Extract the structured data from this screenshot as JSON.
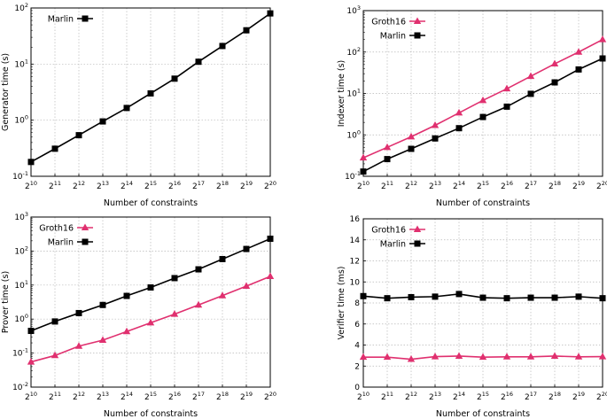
{
  "colors": {
    "marlin": "#000000",
    "groth16": "#e0306f",
    "grid": "#b8b8b8"
  },
  "chart_data": [
    {
      "type": "line",
      "id": "generator",
      "title": "",
      "xlabel": "Number of constraints",
      "ylabel": "Generator time (s)",
      "yscale": "log",
      "ylim": [
        0.1,
        100
      ],
      "ylog_ticks": [
        -1,
        0,
        1,
        2
      ],
      "x_exponents": [
        10,
        11,
        12,
        13,
        14,
        15,
        16,
        17,
        18,
        19,
        20
      ],
      "legend": "top-left",
      "series": [
        {
          "name": "Marlin",
          "marker": "square",
          "color": "#000000",
          "values": [
            0.18,
            0.31,
            0.54,
            0.95,
            1.65,
            3.0,
            5.5,
            11.0,
            21.0,
            40.0,
            80.0
          ]
        }
      ]
    },
    {
      "type": "line",
      "id": "indexer",
      "title": "",
      "xlabel": "Number of constraints",
      "ylabel": "Indexer time (s)",
      "yscale": "log",
      "ylim": [
        0.1,
        1000
      ],
      "ylog_ticks": [
        -1,
        0,
        1,
        2,
        3
      ],
      "x_exponents": [
        10,
        11,
        12,
        13,
        14,
        15,
        16,
        17,
        18,
        19,
        20
      ],
      "legend": "top-left",
      "series": [
        {
          "name": "Groth16",
          "marker": "triangle",
          "color": "#e0306f",
          "values": [
            0.28,
            0.5,
            0.9,
            1.7,
            3.4,
            6.8,
            13.0,
            26.0,
            52.0,
            100.0,
            200.0
          ]
        },
        {
          "name": "Marlin",
          "marker": "square",
          "color": "#000000",
          "values": [
            0.13,
            0.26,
            0.46,
            0.82,
            1.45,
            2.7,
            4.8,
            9.8,
            18.5,
            38.0,
            70.0
          ]
        }
      ]
    },
    {
      "type": "line",
      "id": "prover",
      "title": "",
      "xlabel": "Number of constraints",
      "ylabel": "Prover time (s)",
      "yscale": "log",
      "ylim": [
        0.01,
        1000
      ],
      "ylog_ticks": [
        -2,
        -1,
        0,
        1,
        2,
        3
      ],
      "x_exponents": [
        10,
        11,
        12,
        13,
        14,
        15,
        16,
        17,
        18,
        19,
        20
      ],
      "legend": "top-left",
      "series": [
        {
          "name": "Groth16",
          "marker": "triangle",
          "color": "#e0306f",
          "values": [
            0.055,
            0.085,
            0.16,
            0.24,
            0.43,
            0.78,
            1.4,
            2.6,
            4.9,
            9.3,
            18.0
          ]
        },
        {
          "name": "Marlin",
          "marker": "square",
          "color": "#000000",
          "values": [
            0.45,
            0.85,
            1.5,
            2.6,
            4.8,
            8.5,
            16.0,
            29.0,
            58.0,
            115.0,
            230.0
          ]
        }
      ]
    },
    {
      "type": "line",
      "id": "verifier",
      "title": "",
      "xlabel": "Number of constraints",
      "ylabel": "Verifier time (ms)",
      "yscale": "linear",
      "ylim": [
        0,
        16
      ],
      "yticks": [
        0,
        2,
        4,
        6,
        8,
        10,
        12,
        14,
        16
      ],
      "x_exponents": [
        10,
        11,
        12,
        13,
        14,
        15,
        16,
        17,
        18,
        19,
        20
      ],
      "legend": "top-left",
      "series": [
        {
          "name": "Groth16",
          "marker": "triangle",
          "color": "#e0306f",
          "values": [
            2.85,
            2.85,
            2.65,
            2.9,
            2.95,
            2.85,
            2.88,
            2.88,
            2.95,
            2.88,
            2.9
          ]
        },
        {
          "name": "Marlin",
          "marker": "square",
          "color": "#000000",
          "values": [
            8.65,
            8.45,
            8.55,
            8.6,
            8.85,
            8.5,
            8.45,
            8.5,
            8.5,
            8.6,
            8.45
          ]
        }
      ]
    }
  ]
}
